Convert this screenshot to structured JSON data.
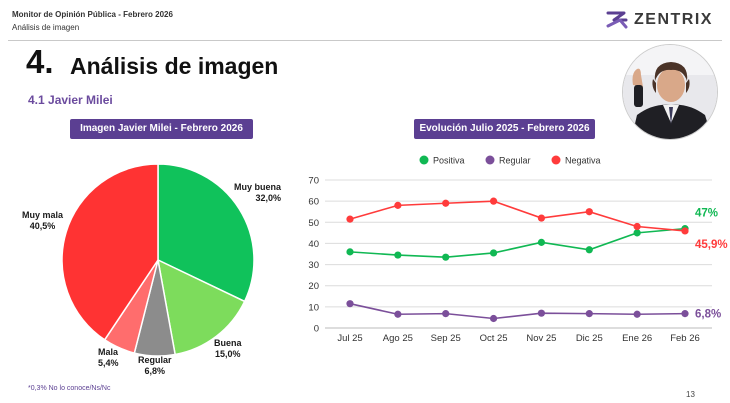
{
  "header": {
    "line1": "Monitor de Opinión Pública - Febrero 2026",
    "line2": "Análisis de imagen"
  },
  "logo": {
    "text": "ZENTRIX",
    "icon": "zentrix-logo-icon",
    "color": "#5b3f92"
  },
  "section": {
    "number": "4.",
    "title": "Análisis de imagen",
    "subtitle": "4.1 Javier Milei"
  },
  "photo": {
    "icon": "person-photo"
  },
  "pie_title": "Imagen Javier Milei - Febrero 2026",
  "line_title": "Evolución Julio 2025 - Febrero 2026",
  "footnote": "*0,3% No lo conoce/Ns/Nc",
  "page_number": "13",
  "chart_data": [
    {
      "type": "pie",
      "title": "Imagen Javier Milei - Febrero 2026",
      "slices": [
        {
          "label": "Muy buena",
          "value": 32.0,
          "display": "32,0%",
          "color": "#10c25b"
        },
        {
          "label": "Buena",
          "value": 15.0,
          "display": "15,0%",
          "color": "#7ddc5c"
        },
        {
          "label": "Regular",
          "value": 6.8,
          "display": "6,8%",
          "color": "#8c8c8c"
        },
        {
          "label": "Mala",
          "value": 5.4,
          "display": "5,4%",
          "color": "#ff6d6d"
        },
        {
          "label": "Muy mala",
          "value": 40.5,
          "display": "40,5%",
          "color": "#ff3333"
        }
      ]
    },
    {
      "type": "line",
      "title": "Evolución Julio 2025 - Febrero 2026",
      "categories": [
        "Jul 25",
        "Ago 25",
        "Sep 25",
        "Oct 25",
        "Nov 25",
        "Dic 25",
        "Ene 26",
        "Feb 26"
      ],
      "ylim": [
        0,
        70
      ],
      "yticks": [
        0,
        10,
        20,
        30,
        40,
        50,
        60,
        70
      ],
      "grid": true,
      "legend_position": "top",
      "series": [
        {
          "name": "Positiva",
          "color": "#10b853",
          "values": [
            36,
            34.5,
            33.5,
            35.5,
            40.5,
            37,
            45,
            47
          ],
          "end_label": "47%"
        },
        {
          "name": "Regular",
          "color": "#7b4f9a",
          "values": [
            11.5,
            6.5,
            6.8,
            4.5,
            7,
            6.8,
            6.5,
            6.8
          ],
          "end_label": "6,8%"
        },
        {
          "name": "Negativa",
          "color": "#ff3b3b",
          "values": [
            51.5,
            58,
            59,
            60,
            52,
            55,
            48,
            45.9
          ],
          "end_label": "45,9%"
        }
      ]
    }
  ]
}
